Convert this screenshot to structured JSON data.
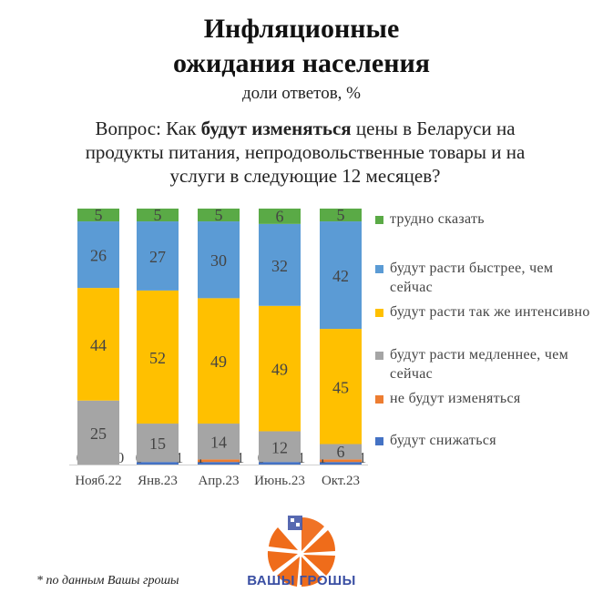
{
  "header": {
    "title_line1": "Инфляционные",
    "title_line2": "ожидания населения",
    "subtitle": "доли ответов, %"
  },
  "question": {
    "prefix": "Вопрос: Как ",
    "bold": "будут изменяться",
    "suffix": " цены в Беларуси на продукты питания, непродовольственные товары и на услуги в следующие 12 месяцев?"
  },
  "legend": {
    "items": [
      {
        "label": "трудно сказать",
        "color": "#5aaa46"
      },
      {
        "label": "будут расти быстрее, чем сейчас",
        "color": "#5b9bd5"
      },
      {
        "label": "будут расти так же интенсивно",
        "color": "#ffc000"
      },
      {
        "label": "будут расти медленнее, чем сейчас",
        "color": "#a5a5a5"
      },
      {
        "label": "не будут изменяться",
        "color": "#ed7d31"
      },
      {
        "label": "будут снижаться",
        "color": "#4472c4"
      }
    ]
  },
  "chart_data": {
    "type": "bar",
    "stacked": true,
    "title": "Инфляционные ожидания населения",
    "subtitle": "доли ответов, %",
    "categories": [
      "Нояб.22",
      "Янв.23",
      "Апр.23",
      "Июнь.23",
      "Окт.23"
    ],
    "ylim": [
      0,
      100
    ],
    "series": [
      {
        "name": "будут снижаться",
        "color": "#4472c4",
        "values": [
          0,
          1,
          1,
          1,
          1
        ]
      },
      {
        "name": "не будут изменяться",
        "color": "#ed7d31",
        "values": [
          0,
          0,
          1,
          0,
          1
        ]
      },
      {
        "name": "будут расти медленнее, чем сейчас",
        "color": "#a5a5a5",
        "values": [
          25,
          15,
          14,
          12,
          6
        ]
      },
      {
        "name": "будут расти так же интенсивно",
        "color": "#ffc000",
        "values": [
          44,
          52,
          49,
          49,
          45
        ]
      },
      {
        "name": "будут расти быстрее, чем сейчас",
        "color": "#5b9bd5",
        "values": [
          26,
          27,
          30,
          32,
          42
        ]
      },
      {
        "name": "трудно сказать",
        "color": "#5aaa46",
        "values": [
          5,
          5,
          5,
          6,
          5
        ]
      }
    ]
  },
  "footnote": "* по данным Вашы грошы",
  "logo": {
    "text": "ВАШЫ ГРОШЫ",
    "color": "#ef6c1a"
  }
}
